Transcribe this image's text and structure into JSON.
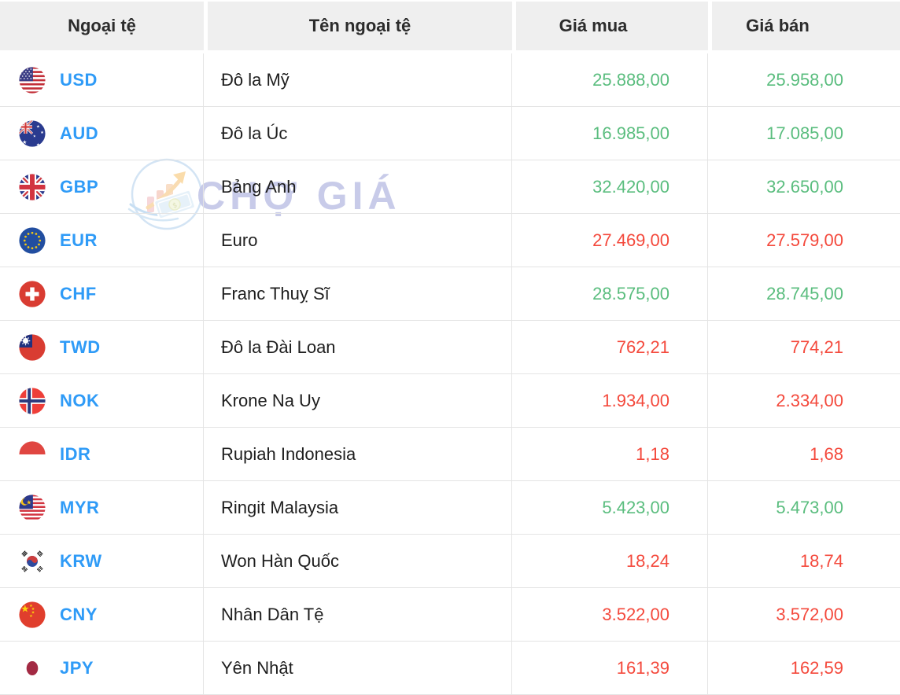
{
  "table": {
    "columns": [
      "Ngoại tệ",
      "Tên ngoại tệ",
      "Giá mua",
      "Giá bán"
    ],
    "rows": [
      {
        "code": "USD",
        "name": "Đô la Mỹ",
        "buy": "25.888,00",
        "sell": "25.958,00",
        "trend": "up",
        "flag": "us"
      },
      {
        "code": "AUD",
        "name": "Đô la Úc",
        "buy": "16.985,00",
        "sell": "17.085,00",
        "trend": "up",
        "flag": "au"
      },
      {
        "code": "GBP",
        "name": "Bảng Anh",
        "buy": "32.420,00",
        "sell": "32.650,00",
        "trend": "up",
        "flag": "gb"
      },
      {
        "code": "EUR",
        "name": "Euro",
        "buy": "27.469,00",
        "sell": "27.579,00",
        "trend": "down",
        "flag": "eu"
      },
      {
        "code": "CHF",
        "name": "Franc Thuỵ Sĩ",
        "buy": "28.575,00",
        "sell": "28.745,00",
        "trend": "up",
        "flag": "ch"
      },
      {
        "code": "TWD",
        "name": "Đô la Đài Loan",
        "buy": "762,21",
        "sell": "774,21",
        "trend": "down",
        "flag": "tw"
      },
      {
        "code": "NOK",
        "name": "Krone Na Uy",
        "buy": "1.934,00",
        "sell": "2.334,00",
        "trend": "down",
        "flag": "no"
      },
      {
        "code": "IDR",
        "name": "Rupiah Indonesia",
        "buy": "1,18",
        "sell": "1,68",
        "trend": "down",
        "flag": "id"
      },
      {
        "code": "MYR",
        "name": "Ringit Malaysia",
        "buy": "5.423,00",
        "sell": "5.473,00",
        "trend": "up",
        "flag": "my"
      },
      {
        "code": "KRW",
        "name": "Won Hàn Quốc",
        "buy": "18,24",
        "sell": "18,74",
        "trend": "down",
        "flag": "kr"
      },
      {
        "code": "CNY",
        "name": "Nhân Dân Tệ",
        "buy": "3.522,00",
        "sell": "3.572,00",
        "trend": "down",
        "flag": "cn"
      },
      {
        "code": "JPY",
        "name": "Yên Nhật",
        "buy": "161,39",
        "sell": "162,59",
        "trend": "down",
        "flag": "jp"
      }
    ]
  },
  "watermark": {
    "text": "CHỢ GIÁ"
  },
  "colors": {
    "up": "#5abd7e",
    "down": "#f4493c",
    "code": "#2f9bf7",
    "header_bg": "#efefef",
    "border": "#e4e4e4",
    "watermark_text": "#c6c9e8"
  }
}
